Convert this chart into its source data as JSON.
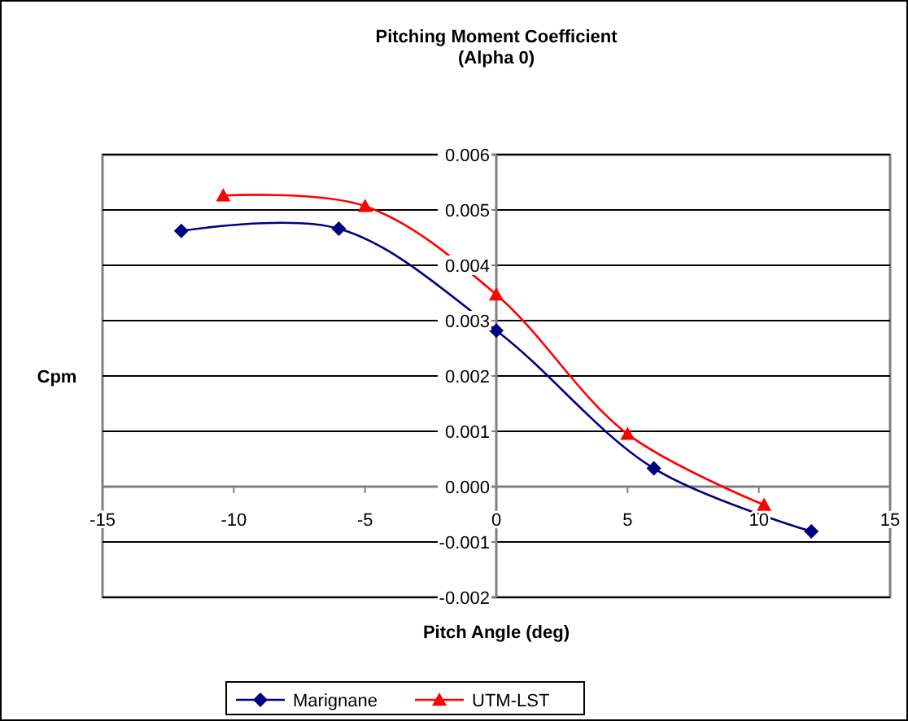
{
  "chart_data": {
    "type": "line",
    "title": "Pitching Moment Coefficient\n(Alpha 0)",
    "xlabel": "Pitch Angle (deg)",
    "ylabel": "Cpm",
    "xlim": [
      -15,
      15
    ],
    "xticks": [
      -15,
      -10,
      -5,
      0,
      5,
      10,
      15
    ],
    "ylim": [
      -0.002,
      0.006
    ],
    "yticks": [
      {
        "value": -0.002,
        "label": "-0.002"
      },
      {
        "value": -0.001,
        "label": "-0.001"
      },
      {
        "value": 0,
        "label": "0.000"
      },
      {
        "value": 0.001,
        "label": "0.001"
      },
      {
        "value": 0.002,
        "label": "0.002"
      },
      {
        "value": 0.003,
        "label": "0.003"
      },
      {
        "value": 0.004,
        "label": "0.004"
      },
      {
        "value": 0.005,
        "label": "0.005"
      },
      {
        "value": 0.006,
        "label": "0.006"
      }
    ],
    "grid": "y",
    "legend": "bottom",
    "line_style": "solid",
    "series": [
      {
        "name": "Marignane",
        "color": "#000080",
        "marker": "diamond",
        "x": [
          -12,
          -6,
          0,
          6,
          12
        ],
        "values": [
          0.00462,
          0.00466,
          0.00282,
          0.00033,
          -0.00081
        ]
      },
      {
        "name": "UTM-LST",
        "color": "#ff0000",
        "marker": "triangle",
        "x": [
          -10.4,
          -5,
          0,
          5,
          10.2
        ],
        "values": [
          0.00526,
          0.00507,
          0.00347,
          0.00095,
          -0.00033
        ]
      }
    ]
  }
}
